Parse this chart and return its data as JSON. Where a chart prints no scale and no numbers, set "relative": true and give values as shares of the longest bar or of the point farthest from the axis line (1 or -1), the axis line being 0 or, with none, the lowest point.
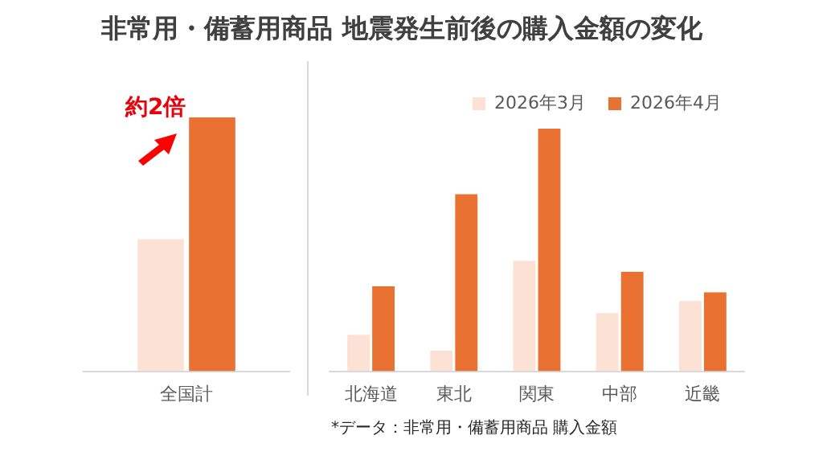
{
  "chart_data": [
    {
      "type": "bar",
      "title": "非常用・備蓄用商品 地震発生前後の購入金額の変化",
      "categories": [
        "全国計"
      ],
      "relative": true,
      "grid": false,
      "legend": false,
      "series": [
        {
          "color": "#fbe2d5",
          "values": [
            0.52
          ]
        },
        {
          "color": "#e97132",
          "values": [
            1
          ]
        }
      ],
      "annotations": [
        "約2倍"
      ]
    },
    {
      "type": "bar",
      "categories": [
        "北海道",
        "東北",
        "関東",
        "中部",
        "近畿"
      ],
      "relative": true,
      "grid": false,
      "legend": "top right",
      "series": [
        {
          "name": "2026年3月",
          "color": "#fbe2d5",
          "values": [
            0.15,
            0.085,
            0.455,
            0.24,
            0.29
          ]
        },
        {
          "name": "2026年4月",
          "color": "#e97132",
          "values": [
            0.35,
            0.73,
            1,
            0.41,
            0.325
          ]
        }
      ],
      "annotations": [
        "*データ：非常用・備蓄用商品 購入金額"
      ]
    }
  ]
}
